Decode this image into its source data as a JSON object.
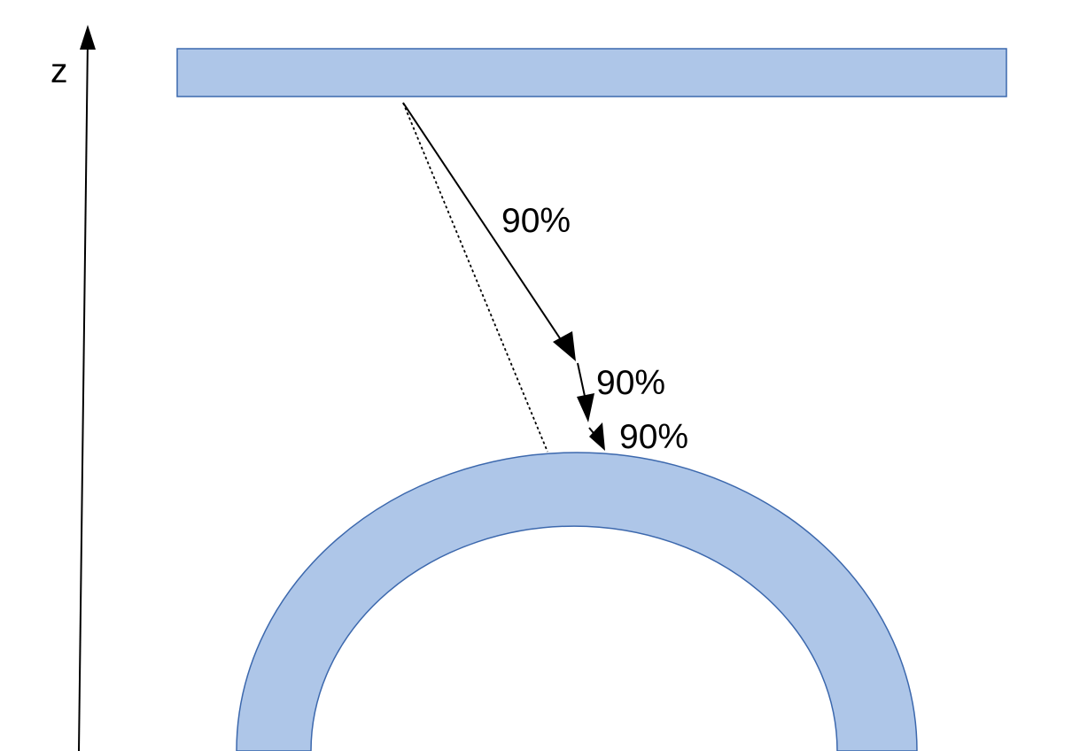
{
  "axis": {
    "label": "z"
  },
  "annotations": [
    {
      "id": "step-1",
      "text": "90%"
    },
    {
      "id": "step-2",
      "text": "90%"
    },
    {
      "id": "step-3",
      "text": "90%"
    }
  ],
  "colors": {
    "shape_fill": "#aec6e8",
    "shape_stroke": "#3c68ad",
    "line": "#000000",
    "background": "#ffffff"
  }
}
